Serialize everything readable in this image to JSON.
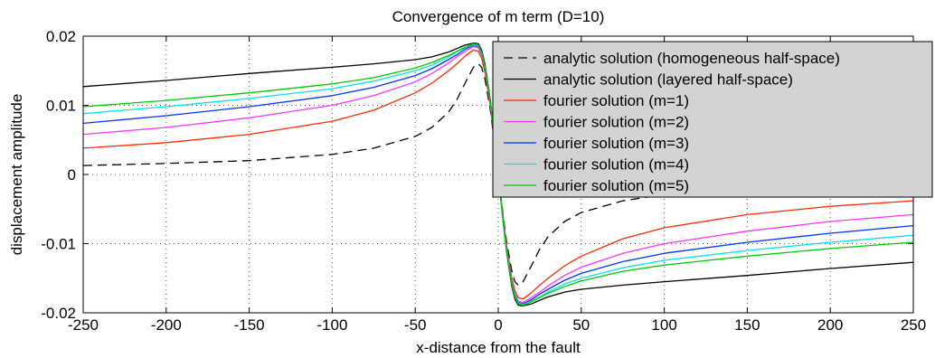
{
  "chart_data": {
    "type": "line",
    "title": "Convergence of m term  (D=10)",
    "xlabel": "x-distance from the fault",
    "ylabel": "displacement amplitude",
    "xlim": [
      -250,
      250
    ],
    "ylim": [
      -0.02,
      0.02
    ],
    "xticks": [
      -250,
      -200,
      -150,
      -100,
      -50,
      0,
      50,
      100,
      150,
      200,
      250
    ],
    "yticks": [
      -0.02,
      -0.01,
      0,
      0.01,
      0.02
    ],
    "xtick_labels": [
      "-250",
      "-200",
      "-150",
      "-100",
      "-50",
      "0",
      "50",
      "100",
      "150",
      "200",
      "250"
    ],
    "ytick_labels": [
      "-0.02",
      "-0.01",
      "0",
      "0.01",
      "0.02"
    ],
    "grid": true,
    "legend_position": "top-right",
    "x": [
      -250,
      -200,
      -150,
      -100,
      -75,
      -50,
      -40,
      -30,
      -25,
      -20,
      -15,
      -12,
      -10,
      -8,
      -5,
      -3,
      0,
      3,
      5,
      8,
      10,
      12,
      15,
      20,
      25,
      30,
      40,
      50,
      75,
      100,
      150,
      200,
      250
    ],
    "series": [
      {
        "name": "analytic solution (homogeneous half-space)",
        "color": "#000000",
        "dash": "10,6",
        "values": [
          0.0013,
          0.0016,
          0.002,
          0.0029,
          0.0038,
          0.0055,
          0.0068,
          0.009,
          0.0108,
          0.0132,
          0.0155,
          0.016,
          0.0155,
          0.0138,
          0.0097,
          0.006,
          0.0,
          -0.006,
          -0.0097,
          -0.0138,
          -0.0155,
          -0.016,
          -0.0155,
          -0.0132,
          -0.0108,
          -0.009,
          -0.0068,
          -0.0055,
          -0.0038,
          -0.0029,
          -0.002,
          -0.0016,
          -0.0013
        ]
      },
      {
        "name": "analytic solution (layered half-space)",
        "color": "#000000",
        "dash": "",
        "values": [
          0.0127,
          0.0136,
          0.0146,
          0.0155,
          0.016,
          0.0166,
          0.017,
          0.0177,
          0.0182,
          0.0187,
          0.019,
          0.0189,
          0.018,
          0.016,
          0.0112,
          0.007,
          0.0,
          -0.007,
          -0.0112,
          -0.016,
          -0.018,
          -0.0189,
          -0.019,
          -0.0187,
          -0.0182,
          -0.0177,
          -0.017,
          -0.0166,
          -0.016,
          -0.0155,
          -0.0146,
          -0.0136,
          -0.0127
        ]
      },
      {
        "name": "fourier solution (m=1)",
        "color": "#ff2a00",
        "dash": "",
        "values": [
          0.0038,
          0.0046,
          0.0058,
          0.0077,
          0.0093,
          0.0118,
          0.0132,
          0.015,
          0.016,
          0.0171,
          0.018,
          0.0178,
          0.0168,
          0.0148,
          0.0102,
          0.0063,
          0.0,
          -0.0063,
          -0.0102,
          -0.0148,
          -0.0168,
          -0.0178,
          -0.018,
          -0.0171,
          -0.016,
          -0.015,
          -0.0132,
          -0.0118,
          -0.0093,
          -0.0077,
          -0.0058,
          -0.0046,
          -0.0038
        ]
      },
      {
        "name": "fourier solution (m=2)",
        "color": "#ff33ff",
        "dash": "",
        "values": [
          0.0058,
          0.0068,
          0.0082,
          0.01,
          0.0114,
          0.0134,
          0.0146,
          0.0161,
          0.017,
          0.0178,
          0.0185,
          0.0183,
          0.0173,
          0.0153,
          0.0106,
          0.0066,
          0.0,
          -0.0066,
          -0.0106,
          -0.0153,
          -0.0173,
          -0.0183,
          -0.0185,
          -0.0178,
          -0.017,
          -0.0161,
          -0.0146,
          -0.0134,
          -0.0114,
          -0.01,
          -0.0082,
          -0.0068,
          -0.0058
        ]
      },
      {
        "name": "fourier solution (m=3)",
        "color": "#0033ff",
        "dash": "",
        "values": [
          0.0074,
          0.0085,
          0.0098,
          0.0114,
          0.0126,
          0.0143,
          0.0153,
          0.0166,
          0.0173,
          0.0181,
          0.0187,
          0.0185,
          0.0175,
          0.0155,
          0.0108,
          0.0067,
          0.0,
          -0.0067,
          -0.0108,
          -0.0155,
          -0.0175,
          -0.0185,
          -0.0187,
          -0.0181,
          -0.0173,
          -0.0166,
          -0.0153,
          -0.0143,
          -0.0126,
          -0.0114,
          -0.0098,
          -0.0085,
          -0.0074
        ]
      },
      {
        "name": "fourier solution (m=4)",
        "color": "#00e5e5",
        "dash": "",
        "values": [
          0.0088,
          0.0098,
          0.011,
          0.0124,
          0.0135,
          0.015,
          0.0158,
          0.017,
          0.0177,
          0.0183,
          0.0188,
          0.0186,
          0.0176,
          0.0156,
          0.0109,
          0.0068,
          0.0,
          -0.0068,
          -0.0109,
          -0.0156,
          -0.0176,
          -0.0186,
          -0.0188,
          -0.0183,
          -0.0177,
          -0.017,
          -0.0158,
          -0.015,
          -0.0135,
          -0.0124,
          -0.011,
          -0.0098,
          -0.0088
        ]
      },
      {
        "name": "fourier solution (m=5)",
        "color": "#00cc00",
        "dash": "",
        "values": [
          0.0098,
          0.0107,
          0.0118,
          0.0131,
          0.014,
          0.0154,
          0.0162,
          0.0172,
          0.0178,
          0.0184,
          0.0189,
          0.0187,
          0.0177,
          0.0157,
          0.0109,
          0.0068,
          0.0,
          -0.0068,
          -0.0109,
          -0.0157,
          -0.0177,
          -0.0187,
          -0.0189,
          -0.0184,
          -0.0178,
          -0.0172,
          -0.0162,
          -0.0154,
          -0.014,
          -0.0131,
          -0.0118,
          -0.0107,
          -0.0098
        ]
      }
    ]
  }
}
